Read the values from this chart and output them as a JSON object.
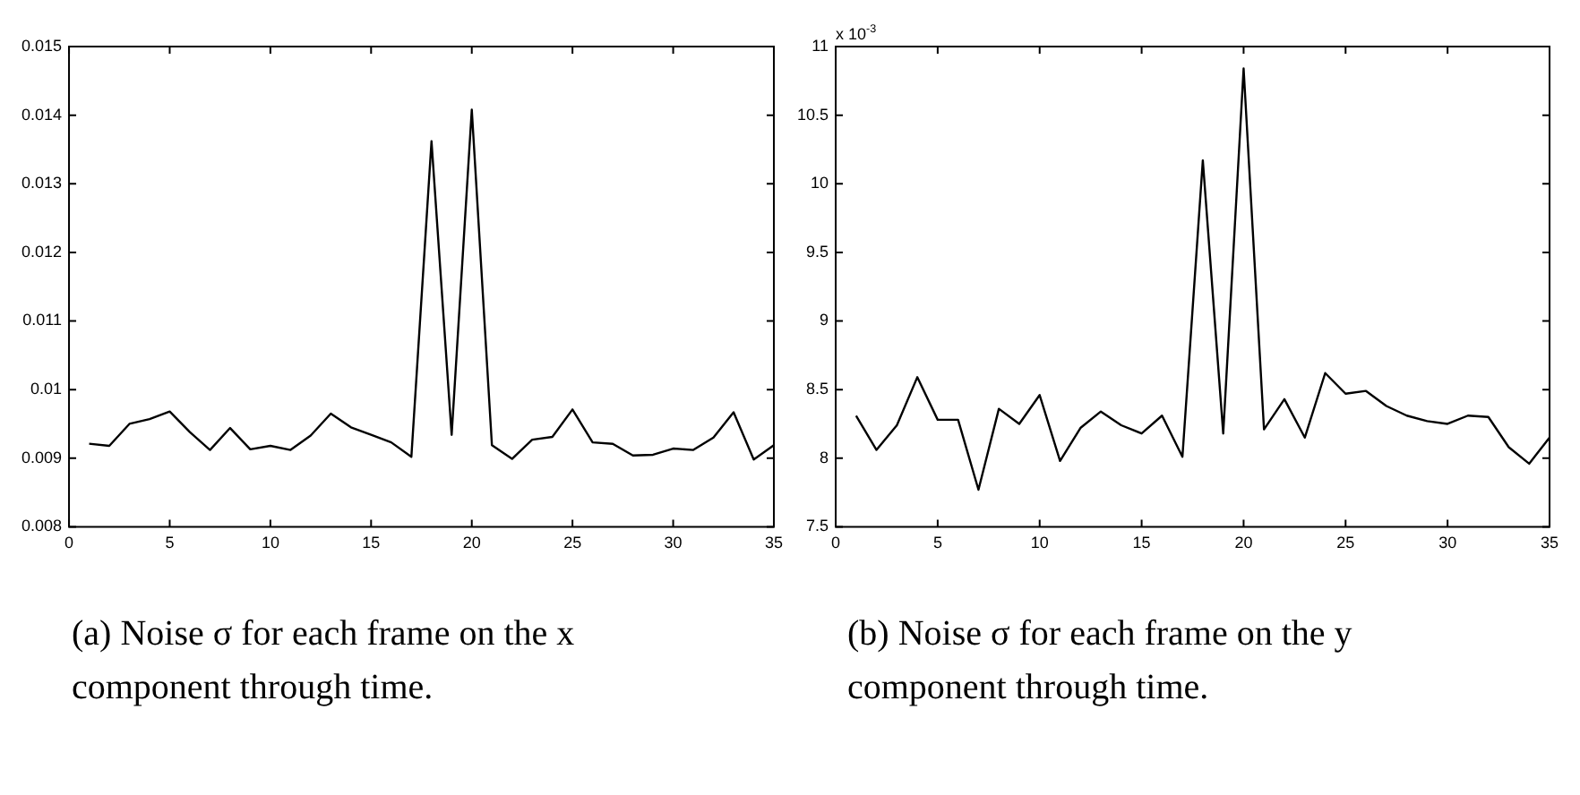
{
  "chart_data": [
    {
      "type": "line",
      "x": [
        1,
        2,
        3,
        4,
        5,
        6,
        7,
        8,
        9,
        10,
        11,
        12,
        13,
        14,
        15,
        16,
        17,
        18,
        19,
        20,
        21,
        22,
        23,
        24,
        25,
        26,
        27,
        28,
        29,
        30,
        31,
        32,
        33,
        34,
        35
      ],
      "series": [
        {
          "color": "#000000",
          "values": [
            0.00921,
            0.00918,
            0.0095,
            0.00957,
            0.00968,
            0.00938,
            0.00912,
            0.00944,
            0.00913,
            0.00918,
            0.00912,
            0.00933,
            0.00965,
            0.00945,
            0.00934,
            0.00923,
            0.00902,
            0.01362,
            0.00934,
            0.01408,
            0.00919,
            0.00899,
            0.00927,
            0.00931,
            0.00971,
            0.00923,
            0.00921,
            0.00904,
            0.00905,
            0.00914,
            0.00912,
            0.0093,
            0.00967,
            0.00898,
            0.00919
          ]
        }
      ],
      "xlim": [
        0,
        35
      ],
      "xticks": [
        0,
        5,
        10,
        15,
        20,
        25,
        30,
        35
      ],
      "ylim": [
        0.008,
        0.015
      ],
      "yticks": [
        0.008,
        0.009,
        0.01,
        0.011,
        0.012,
        0.013,
        0.014,
        0.015
      ],
      "grid": false,
      "marker": "none",
      "line_style": "solid",
      "annotations": [
        "(a) Noise σ for each frame on the x component through time."
      ]
    },
    {
      "type": "line",
      "x": [
        1,
        2,
        3,
        4,
        5,
        6,
        7,
        8,
        9,
        10,
        11,
        12,
        13,
        14,
        15,
        16,
        17,
        18,
        19,
        20,
        21,
        22,
        23,
        24,
        25,
        26,
        27,
        28,
        29,
        30,
        31,
        32,
        33,
        34,
        35
      ],
      "series": [
        {
          "color": "#000000",
          "values": [
            8.31,
            8.06,
            8.24,
            8.59,
            8.28,
            8.28,
            7.77,
            8.36,
            8.25,
            8.46,
            7.98,
            8.22,
            8.34,
            8.24,
            8.18,
            8.31,
            8.01,
            10.17,
            8.18,
            10.84,
            8.21,
            8.43,
            8.15,
            8.62,
            8.47,
            8.49,
            8.38,
            8.31,
            8.27,
            8.25,
            8.31,
            8.3,
            8.08,
            7.96,
            8.15
          ]
        }
      ],
      "xlim": [
        0,
        35
      ],
      "xticks": [
        0,
        5,
        10,
        15,
        20,
        25,
        30,
        35
      ],
      "ylim": [
        7.5,
        11
      ],
      "yticks": [
        7.5,
        8,
        8.5,
        9,
        9.5,
        10,
        10.5,
        11
      ],
      "grid": false,
      "marker": "none",
      "line_style": "solid",
      "annotations": [
        "x 10$^{-3}$",
        "(b) Noise σ for each frame on the y component through time."
      ]
    }
  ]
}
